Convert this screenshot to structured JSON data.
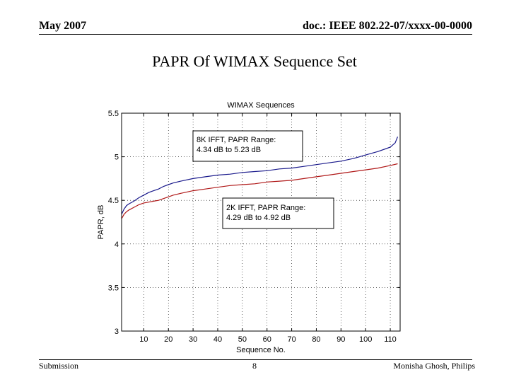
{
  "header": {
    "date": "May 2007",
    "doc_id": "doc.: IEEE 802.22-07/xxxx-00-0000"
  },
  "slide_title": "PAPR Of WIMAX Sequence Set",
  "footer": {
    "left": "Submission",
    "page": "8",
    "right": "Monisha Ghosh, Philips"
  },
  "chart_data": {
    "type": "line",
    "title": "WIMAX Sequences",
    "xlabel": "Sequence No.",
    "ylabel": "PAPR, dB",
    "xlim": [
      1,
      114
    ],
    "ylim": [
      3,
      5.5
    ],
    "xticks": [
      10,
      20,
      30,
      40,
      50,
      60,
      70,
      80,
      90,
      100,
      110
    ],
    "yticks": [
      3,
      3.5,
      4,
      4.5,
      5,
      5.5
    ],
    "grid": true,
    "series": [
      {
        "color": "#1a1a8c",
        "x": [
          1,
          2,
          3,
          4,
          6,
          8,
          10,
          12,
          14,
          16,
          18,
          20,
          22,
          25,
          30,
          35,
          40,
          45,
          50,
          55,
          60,
          65,
          70,
          75,
          80,
          85,
          90,
          95,
          100,
          105,
          108,
          110,
          112,
          113
        ],
        "y": [
          4.34,
          4.4,
          4.44,
          4.46,
          4.49,
          4.53,
          4.56,
          4.59,
          4.61,
          4.63,
          4.66,
          4.68,
          4.7,
          4.72,
          4.75,
          4.77,
          4.79,
          4.8,
          4.82,
          4.83,
          4.84,
          4.86,
          4.87,
          4.89,
          4.91,
          4.93,
          4.95,
          4.98,
          5.02,
          5.06,
          5.09,
          5.11,
          5.16,
          5.23
        ]
      },
      {
        "color": "#b01818",
        "x": [
          1,
          2,
          3,
          4,
          6,
          8,
          10,
          12,
          14,
          16,
          18,
          20,
          22,
          25,
          30,
          35,
          40,
          45,
          50,
          55,
          60,
          65,
          70,
          75,
          80,
          85,
          90,
          95,
          100,
          105,
          110,
          113
        ],
        "y": [
          4.29,
          4.34,
          4.37,
          4.39,
          4.42,
          4.45,
          4.47,
          4.48,
          4.49,
          4.5,
          4.52,
          4.54,
          4.56,
          4.58,
          4.61,
          4.63,
          4.65,
          4.67,
          4.68,
          4.69,
          4.71,
          4.72,
          4.73,
          4.75,
          4.77,
          4.79,
          4.81,
          4.83,
          4.85,
          4.87,
          4.9,
          4.92
        ]
      }
    ],
    "annotations": [
      {
        "line1": "8K IFFT, PAPR Range:",
        "line2": "4.34 dB to 5.23 dB"
      },
      {
        "line1": "2K IFFT, PAPR Range:",
        "line2": "4.29 dB to 4.92 dB"
      }
    ]
  }
}
